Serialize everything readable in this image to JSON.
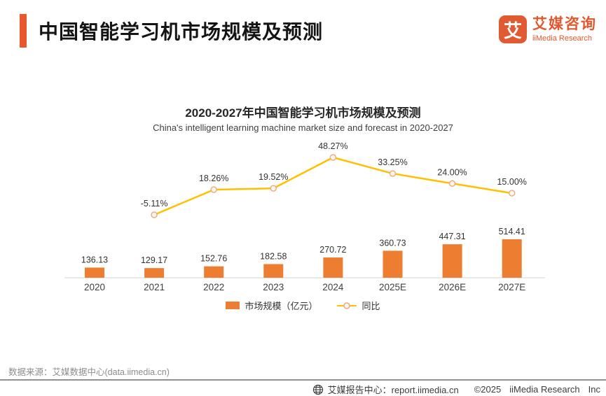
{
  "header": {
    "title": "中国智能学习机市场规模及预测",
    "accent_color": "#E8572E",
    "logo": {
      "glyph": "艾",
      "mark_color": "#E05A32",
      "text_color": "#E4572E",
      "name_cn": "艾媒咨询",
      "name_en": "iiMedia Research"
    }
  },
  "chart_data": {
    "type": "combo-bar-line",
    "title": "2020-2027年中国智能学习机市场规模及预测",
    "subtitle": "China's intelligent learning machine market size and forecast in 2020-2027",
    "categories": [
      "2020",
      "2021",
      "2022",
      "2023",
      "2024",
      "2025E",
      "2026E",
      "2027E"
    ],
    "series": [
      {
        "name": "市场规模（亿元）",
        "type": "bar",
        "values": [
          136.13,
          129.17,
          152.76,
          182.58,
          270.72,
          360.73,
          447.31,
          514.41
        ]
      },
      {
        "name": "同比",
        "type": "line",
        "values": [
          null,
          -5.11,
          18.26,
          19.52,
          48.27,
          33.25,
          24.0,
          15.0
        ]
      }
    ],
    "colors": {
      "bar": "#ED7D31",
      "line": "#FFC000",
      "marker_fill": "#FDF6EF",
      "marker_stroke": "#EFA878",
      "axis": "#E3E3E3",
      "label": "#333333"
    },
    "legend_position": "bottom",
    "grid": false
  },
  "footer": {
    "source": "数据来源：艾媒数据中心(data.iimedia.cn)",
    "report_center": "艾媒报告中心：report.iimedia.cn",
    "copyright": "©2025",
    "company": "iiMedia Research",
    "company_suffix": "Inc"
  }
}
